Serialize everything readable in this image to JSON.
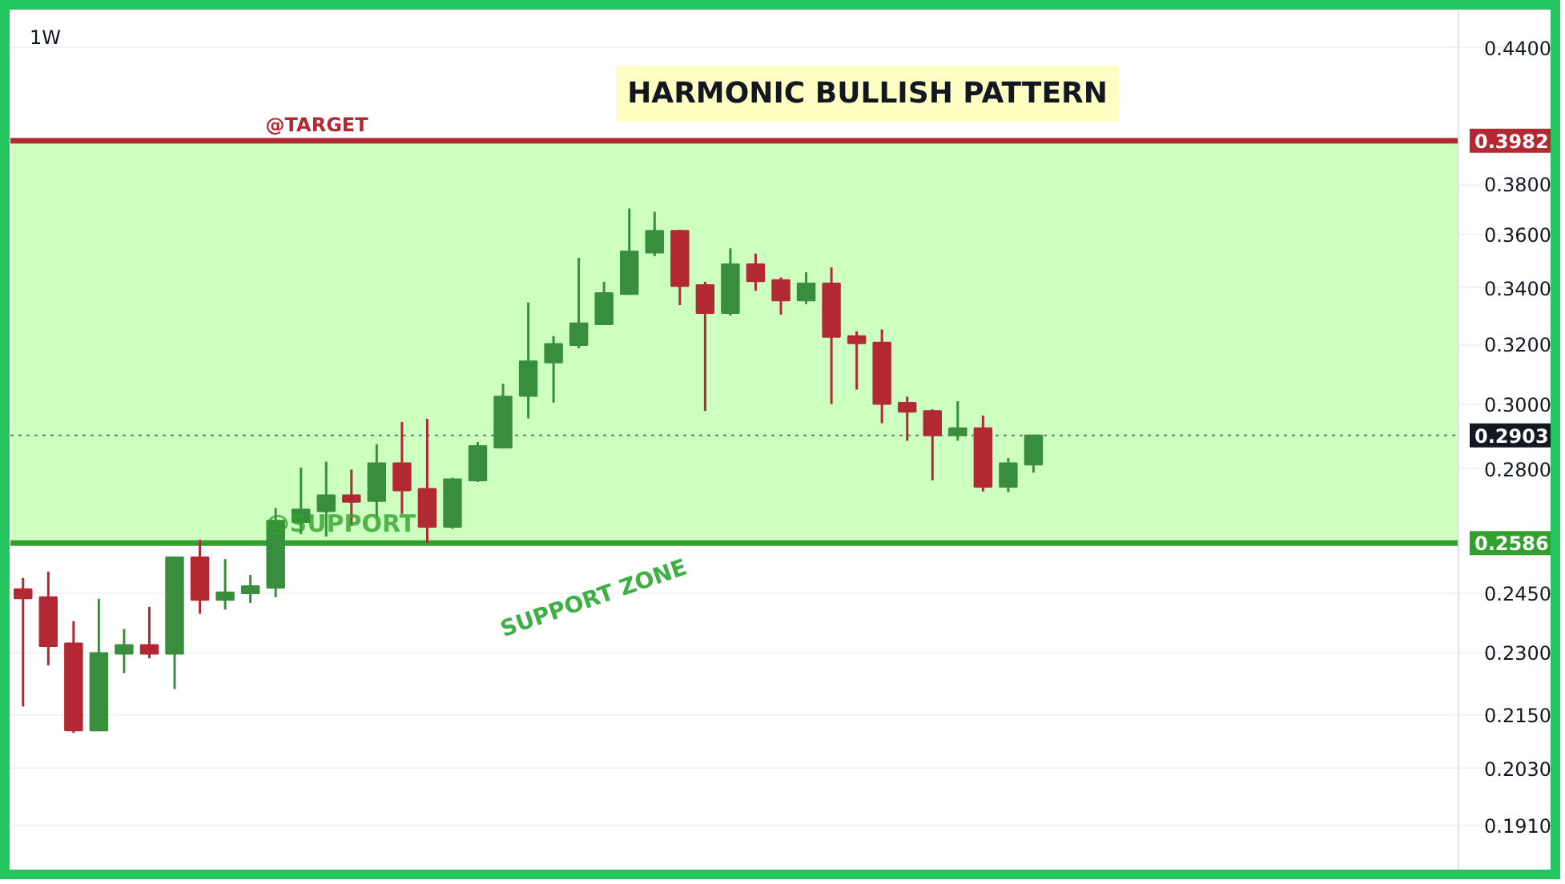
{
  "chart_data": {
    "type": "candlestick",
    "title": "HARMONIC BULLISH PATTERN",
    "categories": [
      null,
      null,
      null,
      null,
      null,
      null,
      null,
      null,
      null,
      null,
      null,
      null,
      null,
      null,
      null,
      null,
      null,
      null,
      null,
      null,
      null,
      null,
      null,
      null,
      null,
      null,
      null,
      null,
      null,
      null,
      null,
      null,
      null,
      null,
      null,
      null,
      null,
      null,
      null,
      null,
      null,
      null,
      null,
      null,
      null,
      null,
      null,
      null,
      null,
      null,
      null,
      null,
      null,
      null,
      null,
      null,
      null,
      null,
      null,
      null,
      null
    ],
    "ohlc": [
      [
        0.2461,
        0.2491,
        0.217,
        0.2437
      ],
      [
        0.244,
        0.2508,
        0.2268,
        0.2315
      ],
      [
        0.2322,
        0.2378,
        0.2109,
        0.2115
      ],
      [
        0.2115,
        0.2436,
        0.2113,
        0.2298
      ],
      [
        0.2296,
        0.2358,
        0.2249,
        0.2318
      ],
      [
        0.2318,
        0.2415,
        0.2285,
        0.2296
      ],
      [
        0.2296,
        0.2547,
        0.2211,
        0.2547
      ],
      [
        0.2547,
        0.2595,
        0.2397,
        0.2433
      ],
      [
        0.2433,
        0.2542,
        0.2408,
        0.2453
      ],
      [
        0.245,
        0.2499,
        0.2425,
        0.2469
      ],
      [
        0.2465,
        0.2685,
        0.244,
        0.2649
      ],
      [
        0.2645,
        0.2804,
        0.2611,
        0.2681
      ],
      [
        0.2676,
        0.2822,
        0.2604,
        0.2722
      ],
      [
        0.2722,
        0.2798,
        0.2634,
        0.2703
      ],
      [
        0.2705,
        0.2875,
        0.2658,
        0.2817
      ],
      [
        0.2817,
        0.2945,
        0.2668,
        0.2736
      ],
      [
        0.2741,
        0.2955,
        0.2586,
        0.2631
      ],
      [
        0.2631,
        0.2774,
        0.2626,
        0.2769
      ],
      [
        0.2766,
        0.2882,
        0.2761,
        0.287
      ],
      [
        0.2865,
        0.3068,
        0.2862,
        0.3026
      ],
      [
        0.3028,
        0.3348,
        0.2956,
        0.3143
      ],
      [
        0.3139,
        0.3229,
        0.3007,
        0.3202
      ],
      [
        0.3198,
        0.3512,
        0.3187,
        0.3274
      ],
      [
        0.327,
        0.3423,
        0.3268,
        0.3382
      ],
      [
        0.3378,
        0.3703,
        0.3376,
        0.3536
      ],
      [
        0.3532,
        0.369,
        0.3518,
        0.3615
      ],
      [
        0.3615,
        0.362,
        0.3338,
        0.3407
      ],
      [
        0.3411,
        0.3423,
        0.298,
        0.331
      ],
      [
        0.331,
        0.3548,
        0.3301,
        0.3488
      ],
      [
        0.3488,
        0.3528,
        0.339,
        0.3425
      ],
      [
        0.3429,
        0.3439,
        0.3304,
        0.3355
      ],
      [
        0.3355,
        0.3458,
        0.3342,
        0.3417
      ],
      [
        0.3417,
        0.3476,
        0.3002,
        0.3226
      ],
      [
        0.3229,
        0.3246,
        0.3049,
        0.3204
      ],
      [
        0.3207,
        0.3252,
        0.2941,
        0.3002
      ],
      [
        0.3006,
        0.3026,
        0.2886,
        0.2977
      ],
      [
        0.298,
        0.2985,
        0.2766,
        0.2903
      ],
      [
        0.2903,
        0.3011,
        0.2886,
        0.2925
      ],
      [
        0.2925,
        0.2965,
        0.2733,
        0.2747
      ],
      [
        0.2747,
        0.2833,
        0.2731,
        0.2817
      ],
      [
        0.2813,
        0.2903,
        0.2789,
        0.2903
      ],
      null,
      null,
      null,
      null,
      null,
      null,
      null,
      null,
      null,
      null,
      null,
      null,
      null,
      null,
      null,
      null,
      null,
      null,
      null,
      null
    ],
    "colors": [
      "#b22833",
      "#b22833",
      "#b22833",
      "#388e3c",
      "#388e3c",
      "#b22833",
      "#388e3c",
      "#b22833",
      "#388e3c",
      "#388e3c",
      "#388e3c",
      "#388e3c",
      "#388e3c",
      "#b22833",
      "#388e3c",
      "#b22833",
      "#b22833",
      "#388e3c",
      "#388e3c",
      "#388e3c",
      "#388e3c",
      "#388e3c",
      "#388e3c",
      "#388e3c",
      "#388e3c",
      "#388e3c",
      "#b22833",
      "#b22833",
      "#388e3c",
      "#b22833",
      "#b22833",
      "#388e3c",
      "#b22833",
      "#b22833",
      "#b22833",
      "#b22833",
      "#b22833",
      "#388e3c",
      "#b22833",
      "#388e3c",
      "#388e3c",
      null,
      null,
      null,
      null,
      null,
      null,
      null,
      null,
      null,
      null,
      null,
      null,
      null,
      null,
      null,
      null,
      null,
      null,
      null,
      null
    ],
    "log": true,
    "ylim": [
      0.182,
      0.458
    ],
    "yticks": [
      {
        "value": 0.191,
        "label": "0.1910"
      },
      {
        "value": 0.203,
        "label": "0.2030"
      },
      {
        "value": 0.215,
        "label": "0.2150"
      },
      {
        "value": 0.23,
        "label": "0.2300"
      },
      {
        "value": 0.245,
        "label": "0.2450"
      },
      {
        "value": 0.28,
        "label": "0.2800"
      },
      {
        "value": 0.3,
        "label": "0.3000"
      },
      {
        "value": 0.32,
        "label": "0.3200"
      },
      {
        "value": 0.34,
        "label": "0.3400"
      },
      {
        "value": 0.36,
        "label": "0.3600"
      },
      {
        "value": 0.38,
        "label": "0.3800"
      },
      {
        "value": 0.44,
        "label": "0.4400"
      }
    ],
    "tick_labels": "y",
    "grid": "y",
    "bands": [
      {
        "axis": "y",
        "from": 0.2586,
        "to": 0.3982,
        "color": "#ccffc0"
      }
    ],
    "ref_lines": [
      {
        "axis": "y",
        "value": 0.3982,
        "label": "0.3982",
        "color": "#b22833"
      },
      {
        "axis": "y",
        "value": 0.2903,
        "label": "0.2903",
        "color": "#131722",
        "line_style": "dotted"
      },
      {
        "axis": "y",
        "value": 0.2586,
        "label": "0.2586",
        "color": "#32a02c"
      }
    ],
    "annotations": [
      "1W",
      {
        "text": "@TARGET",
        "y": 0.3982
      },
      {
        "text": "@SUPPORT",
        "y": 0.2586
      },
      "SUPPORT ZONE"
    ]
  }
}
